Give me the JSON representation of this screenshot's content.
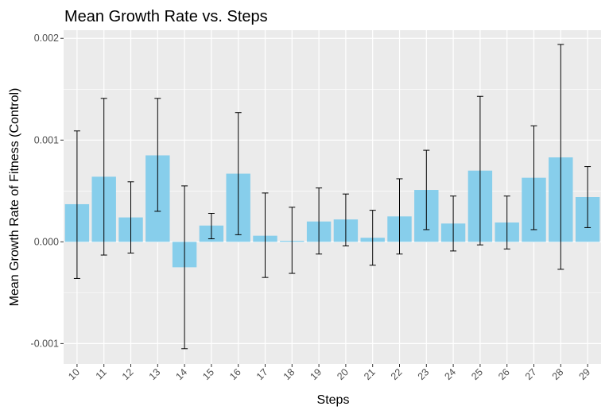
{
  "chart_data": {
    "type": "bar",
    "title": "Mean Growth Rate vs. Steps",
    "xlabel": "Steps",
    "ylabel": "Mean Growth Rate of Fitness (Control)",
    "categories": [
      "10",
      "11",
      "12",
      "13",
      "14",
      "15",
      "16",
      "17",
      "18",
      "19",
      "20",
      "21",
      "22",
      "23",
      "24",
      "25",
      "26",
      "27",
      "28",
      "29"
    ],
    "values": [
      0.00037,
      0.00064,
      0.00024,
      0.00085,
      -0.00025,
      0.00016,
      0.00067,
      6e-05,
      1e-05,
      0.0002,
      0.00022,
      4e-05,
      0.00025,
      0.00051,
      0.00018,
      0.0007,
      0.00019,
      0.00063,
      0.00083,
      0.00044
    ],
    "error_low": [
      -0.00036,
      -0.00013,
      -0.00011,
      0.0003,
      -0.00105,
      3e-05,
      7e-05,
      -0.00035,
      -0.00031,
      -0.00012,
      -4e-05,
      -0.00023,
      -0.00012,
      0.00012,
      -9e-05,
      -3e-05,
      -7e-05,
      0.00012,
      -0.00027,
      0.00014
    ],
    "error_high": [
      0.00109,
      0.00141,
      0.00059,
      0.00141,
      0.00055,
      0.00028,
      0.00127,
      0.00048,
      0.00034,
      0.00053,
      0.00047,
      0.00031,
      0.00062,
      0.0009,
      0.00045,
      0.00143,
      0.00045,
      0.00114,
      0.00194,
      0.00074
    ],
    "ylim": [
      -0.0012,
      0.00208
    ],
    "yticks": [
      "-0.001",
      "0.000",
      "0.001",
      "0.002"
    ],
    "grid": true,
    "bar_color": "#87CEEB",
    "panel_color": "#EBEBEB",
    "grid_color": "#FFFFFF"
  }
}
